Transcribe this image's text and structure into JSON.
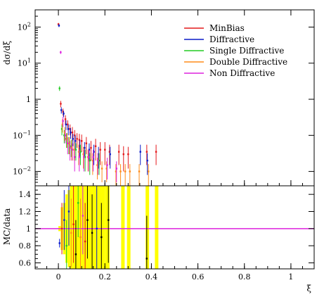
{
  "chart_data": [
    {
      "type": "scatter",
      "title": "",
      "xlabel": "ξ",
      "ylabel": "dσ/dξ",
      "ylim": [
        0.004,
        300
      ],
      "yscale": "log",
      "xlim": [
        -0.1,
        1.1
      ],
      "y_ticks": [
        {
          "value": 0.01,
          "base": "10",
          "exp": "−2"
        },
        {
          "value": 0.1,
          "base": "10",
          "exp": "−1"
        },
        {
          "value": 1,
          "base": "1",
          "exp": ""
        },
        {
          "value": 10,
          "base": "10",
          "exp": "1"
        },
        {
          "value": 100,
          "base": "10",
          "exp": "2"
        }
      ],
      "legend_position": "top-right",
      "series": [
        {
          "name": "MinBias",
          "color": "#e41a1c",
          "points": [
            {
              "x": 0.005,
              "y": 120,
              "err": 10
            },
            {
              "x": 0.015,
              "y": 0.75,
              "err": 0.15
            },
            {
              "x": 0.025,
              "y": 0.45,
              "err": 0.1
            },
            {
              "x": 0.035,
              "y": 0.28,
              "err": 0.08
            },
            {
              "x": 0.045,
              "y": 0.2,
              "err": 0.06
            },
            {
              "x": 0.055,
              "y": 0.15,
              "err": 0.05
            },
            {
              "x": 0.065,
              "y": 0.12,
              "err": 0.05
            },
            {
              "x": 0.075,
              "y": 0.1,
              "err": 0.04
            },
            {
              "x": 0.085,
              "y": 0.08,
              "err": 0.035
            },
            {
              "x": 0.095,
              "y": 0.075,
              "err": 0.035
            },
            {
              "x": 0.105,
              "y": 0.07,
              "err": 0.035
            },
            {
              "x": 0.125,
              "y": 0.06,
              "err": 0.03
            },
            {
              "x": 0.145,
              "y": 0.045,
              "err": 0.025
            },
            {
              "x": 0.165,
              "y": 0.05,
              "err": 0.03
            },
            {
              "x": 0.185,
              "y": 0.04,
              "err": 0.025
            },
            {
              "x": 0.205,
              "y": 0.04,
              "err": 0.025
            },
            {
              "x": 0.225,
              "y": 0.035,
              "err": 0.02
            },
            {
              "x": 0.265,
              "y": 0.035,
              "err": 0.02
            },
            {
              "x": 0.285,
              "y": 0.03,
              "err": 0.02
            },
            {
              "x": 0.305,
              "y": 0.03,
              "err": 0.018
            },
            {
              "x": 0.385,
              "y": 0.035,
              "err": 0.02
            },
            {
              "x": 0.425,
              "y": 0.035,
              "err": 0.02
            }
          ]
        },
        {
          "name": "Diffractive",
          "color": "#0a1cc7",
          "points": [
            {
              "x": 0.005,
              "y": 110,
              "err": 10
            },
            {
              "x": 0.015,
              "y": 0.5,
              "err": 0.1
            },
            {
              "x": 0.025,
              "y": 0.4,
              "err": 0.08
            },
            {
              "x": 0.035,
              "y": 0.2,
              "err": 0.06
            },
            {
              "x": 0.045,
              "y": 0.15,
              "err": 0.05
            },
            {
              "x": 0.055,
              "y": 0.12,
              "err": 0.04
            },
            {
              "x": 0.065,
              "y": 0.08,
              "err": 0.03
            },
            {
              "x": 0.075,
              "y": 0.07,
              "err": 0.03
            },
            {
              "x": 0.095,
              "y": 0.05,
              "err": 0.025
            },
            {
              "x": 0.115,
              "y": 0.045,
              "err": 0.02
            },
            {
              "x": 0.135,
              "y": 0.04,
              "err": 0.02
            },
            {
              "x": 0.155,
              "y": 0.035,
              "err": 0.02
            },
            {
              "x": 0.175,
              "y": 0.03,
              "err": 0.018
            },
            {
              "x": 0.225,
              "y": 0.03,
              "err": 0.018
            },
            {
              "x": 0.355,
              "y": 0.035,
              "err": 0.02
            },
            {
              "x": 0.385,
              "y": 0.02,
              "err": 0.012
            }
          ]
        },
        {
          "name": "Single Diffractive",
          "color": "#22cc22",
          "points": [
            {
              "x": 0.005,
              "y": 2,
              "err": 0.3
            },
            {
              "x": 0.015,
              "y": 0.15,
              "err": 0.05
            },
            {
              "x": 0.025,
              "y": 0.1,
              "err": 0.04
            },
            {
              "x": 0.035,
              "y": 0.08,
              "err": 0.035
            },
            {
              "x": 0.045,
              "y": 0.06,
              "err": 0.03
            },
            {
              "x": 0.055,
              "y": 0.05,
              "err": 0.025
            },
            {
              "x": 0.075,
              "y": 0.04,
              "err": 0.02
            },
            {
              "x": 0.095,
              "y": 0.035,
              "err": 0.02
            },
            {
              "x": 0.115,
              "y": 0.025,
              "err": 0.015
            },
            {
              "x": 0.135,
              "y": 0.02,
              "err": 0.012
            },
            {
              "x": 0.175,
              "y": 0.02,
              "err": 0.012
            }
          ]
        },
        {
          "name": "Double Diffractive",
          "color": "#ff8c1a",
          "points": [
            {
              "x": 0.015,
              "y": 0.2,
              "err": 0.08
            },
            {
              "x": 0.025,
              "y": 0.12,
              "err": 0.05
            },
            {
              "x": 0.035,
              "y": 0.08,
              "err": 0.035
            },
            {
              "x": 0.045,
              "y": 0.06,
              "err": 0.03
            },
            {
              "x": 0.055,
              "y": 0.045,
              "err": 0.025
            },
            {
              "x": 0.065,
              "y": 0.04,
              "err": 0.02
            },
            {
              "x": 0.085,
              "y": 0.035,
              "err": 0.02
            },
            {
              "x": 0.105,
              "y": 0.03,
              "err": 0.018
            },
            {
              "x": 0.125,
              "y": 0.025,
              "err": 0.015
            },
            {
              "x": 0.145,
              "y": 0.02,
              "err": 0.012
            },
            {
              "x": 0.165,
              "y": 0.015,
              "err": 0.009
            },
            {
              "x": 0.185,
              "y": 0.012,
              "err": 0.007
            },
            {
              "x": 0.205,
              "y": 0.012,
              "err": 0.007
            },
            {
              "x": 0.245,
              "y": 0.01,
              "err": 0.006
            },
            {
              "x": 0.265,
              "y": 0.01,
              "err": 0.006
            },
            {
              "x": 0.285,
              "y": 0.01,
              "err": 0.006
            },
            {
              "x": 0.305,
              "y": 0.01,
              "err": 0.006
            },
            {
              "x": 0.345,
              "y": 0.01,
              "err": 0.006
            },
            {
              "x": 0.385,
              "y": 0.01,
              "err": 0.006
            }
          ]
        },
        {
          "name": "Non Diffractive",
          "color": "#dd22dd",
          "points": [
            {
              "x": 0.005,
              "y": 20,
              "err": 2
            },
            {
              "x": 0.015,
              "y": 0.25,
              "err": 0.08
            },
            {
              "x": 0.025,
              "y": 0.1,
              "err": 0.04
            },
            {
              "x": 0.035,
              "y": 0.06,
              "err": 0.03
            },
            {
              "x": 0.045,
              "y": 0.045,
              "err": 0.025
            },
            {
              "x": 0.055,
              "y": 0.04,
              "err": 0.02
            },
            {
              "x": 0.065,
              "y": 0.025,
              "err": 0.015
            },
            {
              "x": 0.085,
              "y": 0.025,
              "err": 0.015
            },
            {
              "x": 0.105,
              "y": 0.025,
              "err": 0.015
            },
            {
              "x": 0.125,
              "y": 0.025,
              "err": 0.015
            },
            {
              "x": 0.145,
              "y": 0.025,
              "err": 0.015
            },
            {
              "x": 0.165,
              "y": 0.02,
              "err": 0.012
            },
            {
              "x": 0.205,
              "y": 0.015,
              "err": 0.009
            },
            {
              "x": 0.245,
              "y": 0.012,
              "err": 0.007
            }
          ]
        }
      ]
    },
    {
      "type": "scatter",
      "title": "",
      "xlabel": "ξ",
      "ylabel": "MC/data",
      "xlim": [
        -0.1,
        1.1
      ],
      "ylim": [
        0.53,
        1.5
      ],
      "y_ticks": [
        0.6,
        0.8,
        1,
        1.2,
        1.4
      ],
      "x_ticks": [
        0,
        0.2,
        0.4,
        0.6,
        0.8,
        1
      ],
      "reference_line": {
        "y": 1,
        "color": "#dd22dd"
      },
      "uncertainty_band_color": "#ffff00",
      "uncertainty_band": [
        {
          "x0": 0.0,
          "x1": 0.01,
          "lo": 0.97,
          "hi": 1.03
        },
        {
          "x0": 0.01,
          "x1": 0.02,
          "lo": 0.75,
          "hi": 1.25
        },
        {
          "x0": 0.02,
          "x1": 0.03,
          "lo": 0.7,
          "hi": 1.3
        },
        {
          "x0": 0.03,
          "x1": 0.04,
          "lo": 0.6,
          "hi": 1.4
        },
        {
          "x0": 0.04,
          "x1": 0.05,
          "lo": 0.55,
          "hi": 1.45
        },
        {
          "x0": 0.05,
          "x1": 0.06,
          "lo": 0.53,
          "hi": 1.5
        },
        {
          "x0": 0.06,
          "x1": 0.2,
          "lo": 0.53,
          "hi": 1.5
        },
        {
          "x0": 0.2,
          "x1": 0.22,
          "lo": 0.53,
          "hi": 1.5
        },
        {
          "x0": 0.27,
          "x1": 0.285,
          "lo": 0.53,
          "hi": 1.5
        },
        {
          "x0": 0.295,
          "x1": 0.31,
          "lo": 0.53,
          "hi": 1.5
        },
        {
          "x0": 0.375,
          "x1": 0.39,
          "lo": 0.53,
          "hi": 1.5
        },
        {
          "x0": 0.415,
          "x1": 0.43,
          "lo": 0.53,
          "hi": 1.5
        }
      ],
      "data_points": [
        {
          "x": 0.005,
          "y": 0.83,
          "err": 0.05,
          "color": "#0a1cc7"
        },
        {
          "x": 0.015,
          "y": 1.0,
          "err": 0.3,
          "color": "#e41a1c"
        },
        {
          "x": 0.025,
          "y": 1.1,
          "err": 0.35,
          "color": "#0a1cc7"
        },
        {
          "x": 0.035,
          "y": 0.8,
          "err": 0.3,
          "color": "#22cc22"
        },
        {
          "x": 0.045,
          "y": 1.2,
          "err": 0.4,
          "color": "#0a1cc7"
        },
        {
          "x": 0.055,
          "y": 0.95,
          "err": 0.4,
          "color": "#ff8c1a"
        },
        {
          "x": 0.065,
          "y": 1.05,
          "err": 0.45,
          "color": "#e41a1c"
        },
        {
          "x": 0.075,
          "y": 0.7,
          "err": 0.4,
          "color": "#000000"
        },
        {
          "x": 0.085,
          "y": 1.3,
          "err": 0.4,
          "color": "#22cc22"
        },
        {
          "x": 0.095,
          "y": 0.9,
          "err": 0.45,
          "color": "#ff8c1a"
        },
        {
          "x": 0.105,
          "y": 1.15,
          "err": 0.45,
          "color": "#dd22dd"
        },
        {
          "x": 0.115,
          "y": 0.85,
          "err": 0.45,
          "color": "#e41a1c"
        },
        {
          "x": 0.125,
          "y": 1.1,
          "err": 0.45,
          "color": "#000000"
        },
        {
          "x": 0.145,
          "y": 0.95,
          "err": 0.45,
          "color": "#000000"
        },
        {
          "x": 0.165,
          "y": 1.0,
          "err": 0.5,
          "color": "#0a1cc7"
        },
        {
          "x": 0.185,
          "y": 0.9,
          "err": 0.4,
          "color": "#000000"
        },
        {
          "x": 0.215,
          "y": 1.1,
          "err": 0.5,
          "color": "#000000"
        },
        {
          "x": 0.38,
          "y": 0.65,
          "err": 0.5,
          "color": "#000000"
        }
      ]
    }
  ]
}
